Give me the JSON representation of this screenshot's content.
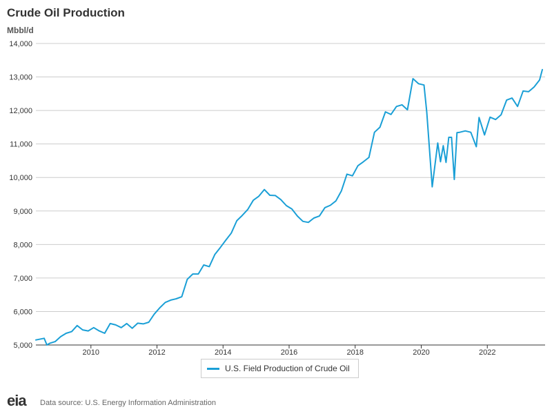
{
  "header": {
    "title": "Crude Oil Production",
    "units": "Mbbl/d"
  },
  "legend": {
    "label": "U.S. Field Production of Crude Oil"
  },
  "footer": {
    "logo": "eia",
    "source": "Data source: U.S. Energy Information Administration"
  },
  "colors": {
    "series": "#1a9fd6",
    "grid": "#cccccc",
    "axis": "#333333"
  },
  "chart_data": {
    "type": "line",
    "title": "Crude Oil Production",
    "ylabel": "Mbbl/d",
    "xlabel": "",
    "ylim": [
      5000,
      14000
    ],
    "xlim": [
      "2008-05",
      "2023-10"
    ],
    "y_ticks": [
      5000,
      6000,
      7000,
      8000,
      9000,
      10000,
      11000,
      12000,
      13000,
      14000
    ],
    "y_tick_labels": [
      "5,000",
      "6,000",
      "7,000",
      "8,000",
      "9,000",
      "10,000",
      "11,000",
      "12,000",
      "13,000",
      "14,000"
    ],
    "x_ticks": [
      2010,
      2012,
      2014,
      2016,
      2018,
      2020,
      2022
    ],
    "grid": true,
    "legend_position": "bottom-center",
    "series": [
      {
        "name": "U.S. Field Production of Crude Oil",
        "x": [
          "2008-05",
          "2008-08",
          "2008-09",
          "2008-10",
          "2008-12",
          "2009-02",
          "2009-04",
          "2009-06",
          "2009-08",
          "2009-10",
          "2009-12",
          "2010-02",
          "2010-04",
          "2010-06",
          "2010-08",
          "2010-10",
          "2010-12",
          "2011-02",
          "2011-04",
          "2011-06",
          "2011-08",
          "2011-10",
          "2011-12",
          "2012-02",
          "2012-04",
          "2012-06",
          "2012-08",
          "2012-10",
          "2012-12",
          "2013-02",
          "2013-04",
          "2013-06",
          "2013-08",
          "2013-10",
          "2013-12",
          "2014-02",
          "2014-04",
          "2014-06",
          "2014-08",
          "2014-10",
          "2014-12",
          "2015-02",
          "2015-04",
          "2015-06",
          "2015-08",
          "2015-10",
          "2015-12",
          "2016-02",
          "2016-04",
          "2016-06",
          "2016-08",
          "2016-10",
          "2016-12",
          "2017-02",
          "2017-04",
          "2017-06",
          "2017-08",
          "2017-10",
          "2017-12",
          "2018-02",
          "2018-04",
          "2018-06",
          "2018-08",
          "2018-10",
          "2018-12",
          "2019-02",
          "2019-04",
          "2019-06",
          "2019-08",
          "2019-10",
          "2019-12",
          "2020-02",
          "2020-03",
          "2020-05",
          "2020-07",
          "2020-08",
          "2020-09",
          "2020-10",
          "2020-11",
          "2020-12",
          "2021-01",
          "2021-02",
          "2021-03",
          "2021-05",
          "2021-07",
          "2021-09",
          "2021-10",
          "2021-12",
          "2022-02",
          "2022-04",
          "2022-06",
          "2022-08",
          "2022-10",
          "2022-12",
          "2023-02",
          "2023-04",
          "2023-06",
          "2023-08",
          "2023-09"
        ],
        "values": [
          5150,
          5200,
          5000,
          5050,
          5100,
          5250,
          5350,
          5400,
          5580,
          5450,
          5420,
          5520,
          5420,
          5350,
          5640,
          5600,
          5520,
          5640,
          5500,
          5650,
          5630,
          5680,
          5920,
          6110,
          6270,
          6340,
          6380,
          6440,
          6960,
          7120,
          7120,
          7390,
          7340,
          7700,
          7910,
          8130,
          8340,
          8710,
          8870,
          9050,
          9320,
          9440,
          9640,
          9470,
          9460,
          9340,
          9160,
          9060,
          8850,
          8690,
          8660,
          8790,
          8850,
          9100,
          9170,
          9300,
          9600,
          10100,
          10050,
          10350,
          10470,
          10600,
          11350,
          11500,
          11960,
          11880,
          12120,
          12170,
          12020,
          12950,
          12800,
          12760,
          11950,
          9720,
          11030,
          10470,
          10950,
          10450,
          11200,
          11200,
          9940,
          11340,
          11350,
          11390,
          11350,
          10920,
          11790,
          11270,
          11800,
          11730,
          11870,
          12310,
          12370,
          12120,
          12580,
          12560,
          12700,
          12910,
          13220
        ]
      }
    ]
  }
}
